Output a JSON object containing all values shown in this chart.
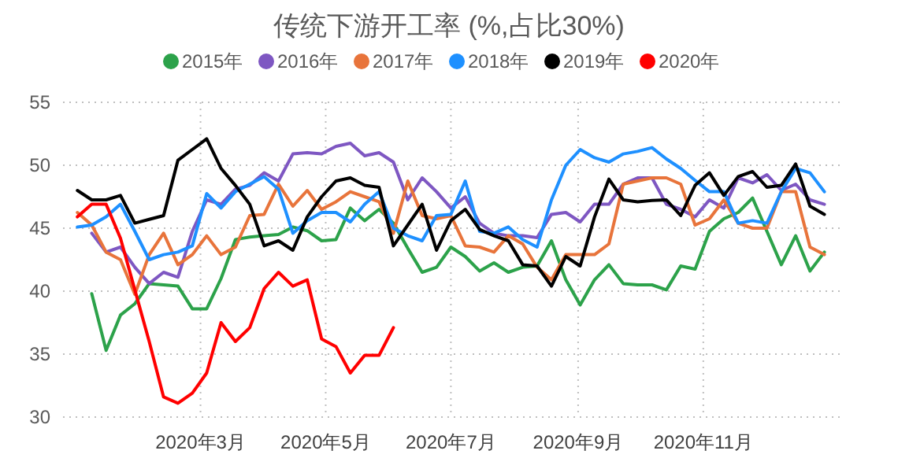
{
  "chart_data": {
    "type": "line",
    "title": "传统下游开工率 (%,占比30%)",
    "x": [
      "2020-01-01",
      "2020-01-08",
      "2020-01-15",
      "2020-01-22",
      "2020-01-29",
      "2020-02-05",
      "2020-02-12",
      "2020-02-19",
      "2020-02-26",
      "2020-03-04",
      "2020-03-11",
      "2020-03-18",
      "2020-03-25",
      "2020-04-01",
      "2020-04-08",
      "2020-04-15",
      "2020-04-22",
      "2020-04-29",
      "2020-05-06",
      "2020-05-13",
      "2020-05-20",
      "2020-05-27",
      "2020-06-03",
      "2020-06-10",
      "2020-06-17",
      "2020-06-24",
      "2020-07-01",
      "2020-07-08",
      "2020-07-15",
      "2020-07-22",
      "2020-07-29",
      "2020-08-05",
      "2020-08-12",
      "2020-08-19",
      "2020-08-26",
      "2020-09-02",
      "2020-09-09",
      "2020-09-16",
      "2020-09-23",
      "2020-09-30",
      "2020-10-07",
      "2020-10-14",
      "2020-10-21",
      "2020-10-28",
      "2020-11-04",
      "2020-11-11",
      "2020-11-18",
      "2020-11-25",
      "2020-12-02",
      "2020-12-09",
      "2020-12-16",
      "2020-12-23",
      "2020-12-30"
    ],
    "series": [
      {
        "name": "2015年",
        "color": "#2ca24a",
        "values": [
          null,
          39.8,
          35.3,
          38.1,
          39,
          40.6,
          40.5,
          40.4,
          38.6,
          38.6,
          41,
          44.1,
          44.3,
          44.4,
          44.5,
          45.1,
          44.8,
          44,
          44.1,
          46.6,
          45.6,
          46.5,
          45.4,
          43.4,
          41.5,
          41.9,
          43.5,
          42.75,
          41.6,
          42.25,
          41.5,
          41.9,
          42,
          44,
          40.9,
          38.9,
          40.9,
          42.1,
          40.6,
          40.5,
          40.5,
          40.1,
          42,
          41.75,
          44.75,
          45.75,
          46.25,
          47.4,
          44.75,
          42.1,
          44.4,
          41.6,
          43.1
        ]
      },
      {
        "name": "2016年",
        "color": "#7e57c2",
        "values": [
          null,
          44.6,
          43.1,
          43.5,
          41.9,
          40.6,
          41.5,
          41.1,
          44.75,
          47.25,
          46.9,
          48.1,
          48.4,
          49.4,
          48.75,
          50.9,
          51,
          50.9,
          51.5,
          51.75,
          50.75,
          51,
          50.25,
          47.25,
          49,
          47.9,
          46.6,
          47.5,
          45.4,
          44.6,
          44.4,
          44.4,
          44.25,
          46.1,
          46.25,
          45.5,
          46.9,
          46.9,
          48.5,
          49,
          49,
          46.9,
          46.5,
          45.9,
          47.25,
          46.6,
          49,
          48.6,
          49.25,
          48,
          48.5,
          47.25,
          46.9
        ]
      },
      {
        "name": "2017年",
        "color": "#e8743b",
        "values": [
          46.25,
          45.25,
          43.1,
          42.5,
          39.75,
          42.9,
          44.6,
          42.1,
          42.9,
          44.4,
          42.9,
          43.5,
          46,
          46.1,
          48.5,
          46.75,
          48,
          46.5,
          47.1,
          47.9,
          47.5,
          47.1,
          44.6,
          48.75,
          46,
          45.75,
          46,
          43.6,
          43.5,
          43.1,
          44.4,
          43.75,
          41.9,
          40.9,
          42.9,
          42.9,
          42.9,
          43.75,
          48.5,
          48.75,
          49,
          49,
          48.5,
          45.25,
          45.75,
          47.25,
          45.4,
          45,
          45,
          47.9,
          47.9,
          43.5,
          42.9
        ]
      },
      {
        "name": "2018年",
        "color": "#1e90ff",
        "values": [
          45.1,
          45.25,
          45.9,
          46.9,
          44.75,
          42.5,
          42.9,
          43.1,
          43.6,
          47.75,
          46.6,
          47.9,
          48.5,
          49.1,
          48.1,
          44.6,
          45.6,
          46.25,
          46.25,
          45.5,
          46.9,
          47.9,
          45,
          44.4,
          44,
          46,
          46.1,
          48.75,
          44.75,
          44.6,
          45.1,
          44.1,
          43.5,
          47.25,
          50,
          51.25,
          50.6,
          50.25,
          50.9,
          51.1,
          51.4,
          50.5,
          49.75,
          48.8,
          47.9,
          47.9,
          45.4,
          45.6,
          45.4,
          47.9,
          49.75,
          49.4,
          47.9
        ]
      },
      {
        "name": "2019年",
        "color": "#000000",
        "values": [
          48,
          47.25,
          47.25,
          47.6,
          45.4,
          45.7,
          46,
          50.4,
          51.25,
          52.1,
          49.75,
          48.4,
          46.9,
          43.6,
          44,
          43.25,
          45.9,
          47.5,
          48.75,
          49,
          48.4,
          48.25,
          43.6,
          45.25,
          46.9,
          43.25,
          45.6,
          46.5,
          44.9,
          44.4,
          44,
          42.1,
          42,
          40.4,
          42.75,
          42,
          45.9,
          48.9,
          47.25,
          47.1,
          47.2,
          47.25,
          46,
          48.4,
          49.4,
          47.6,
          49.1,
          49.5,
          48.25,
          48.4,
          50.1,
          46.75,
          46.1
        ]
      },
      {
        "name": "2020年",
        "color": "#ff0000",
        "values": [
          45.9,
          46.9,
          46.9,
          44.2,
          40.1,
          36,
          31.6,
          31.1,
          31.9,
          33.5,
          37.5,
          36,
          37.1,
          40.2,
          41.5,
          40.4,
          40.9,
          36.2,
          35.6,
          33.5,
          34.9,
          34.9,
          37.1,
          null,
          null,
          null,
          null,
          null,
          null,
          null,
          null,
          null,
          null,
          null,
          null,
          null,
          null,
          null,
          null,
          null,
          null,
          null,
          null,
          null,
          null,
          null,
          null,
          null,
          null,
          null,
          null,
          null,
          null
        ]
      }
    ],
    "xlim": [
      "2019-12-25",
      "2021-01-08"
    ],
    "xticks": [
      {
        "value": "2020-03-01",
        "label": "2020年3月"
      },
      {
        "value": "2020-05-01",
        "label": "2020年5月"
      },
      {
        "value": "2020-07-01",
        "label": "2020年7月"
      },
      {
        "value": "2020-09-01",
        "label": "2020年9月"
      },
      {
        "value": "2020-11-01",
        "label": "2020年11月"
      }
    ],
    "ylim": [
      30,
      55
    ],
    "yticks": [
      30,
      35,
      40,
      45,
      50,
      55
    ],
    "grid": true,
    "legend": "top",
    "marker": "none",
    "line_style": "solid"
  }
}
